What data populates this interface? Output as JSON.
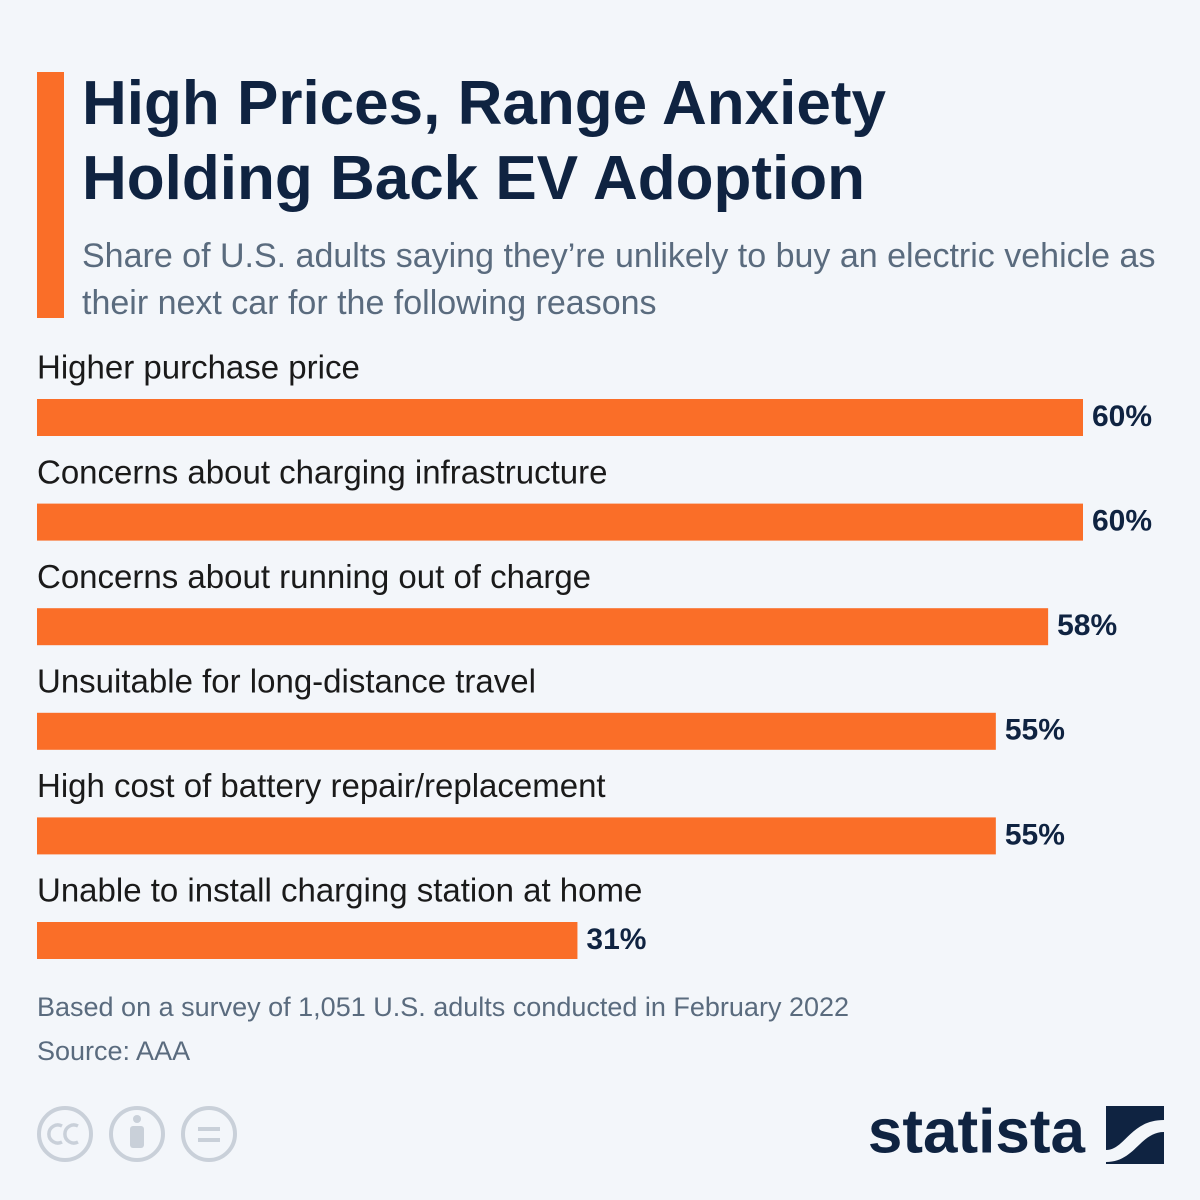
{
  "chart_data": {
    "type": "bar",
    "orientation": "horizontal",
    "title": "High Prices, Range Anxiety Holding Back EV Adoption",
    "subtitle": "Share of U.S. adults saying they’re unlikely to buy an electric vehicle as their next car for the following reasons",
    "categories": [
      "Higher purchase price",
      "Concerns about charging infrastructure",
      "Concerns about running out of charge",
      "Unsuitable for long-distance travel",
      "High cost of battery repair/replacement",
      "Unable to install charging station at home"
    ],
    "values": [
      60,
      60,
      58,
      55,
      55,
      31
    ],
    "value_labels": [
      "60%",
      "60%",
      "58%",
      "55%",
      "55%",
      "31%"
    ],
    "color": "#fa6e28",
    "note": "Based on a survey of 1,051 U.S. adults conducted in February 2022",
    "source": "Source: AAA",
    "brand": "statista"
  }
}
